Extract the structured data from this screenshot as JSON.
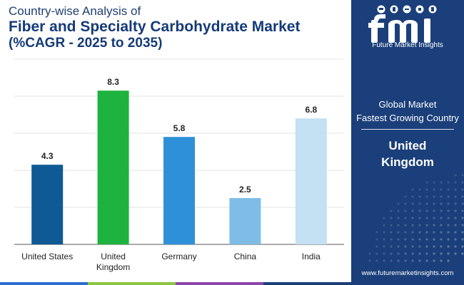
{
  "header": {
    "subtitle": "Country-wise Analysis of",
    "title": "Fiber and Specialty Carbohydrate Market",
    "cagr_label": "(%CAGR - 2025 to 2035)"
  },
  "sidebar": {
    "brand_name": "Future Market Insights",
    "global_market_label": "Global Market",
    "fastest_label": "Fastest Growing Country",
    "country_line1": "United",
    "country_line2": "Kingdom",
    "website": "www.futuremarketinsights.com"
  },
  "colors": {
    "sidebar_bg": "#1b3f7a",
    "strip": [
      "#2a6fd6",
      "#8cc63f",
      "#8e44ad",
      "#1b3f7a"
    ]
  },
  "chart_data": {
    "type": "bar",
    "title": "Fiber and Specialty Carbohydrate Market (%CAGR - 2025 to 2035)",
    "xlabel": "",
    "ylabel": "",
    "ylim": [
      0,
      10
    ],
    "grid": true,
    "categories": [
      "United States",
      "United Kingdom",
      "Germany",
      "China",
      "India"
    ],
    "category_lines": [
      [
        "United States"
      ],
      [
        "United",
        "Kingdom"
      ],
      [
        "Germany"
      ],
      [
        "China"
      ],
      [
        "India"
      ]
    ],
    "values": [
      4.3,
      8.3,
      5.8,
      2.5,
      6.8
    ],
    "value_labels": [
      "4.3",
      "8.3",
      "5.8",
      "2.5",
      "6.8"
    ],
    "colors": [
      "#0f5a94",
      "#1db33e",
      "#2e90d9",
      "#7fbde6",
      "#c3e1f2"
    ]
  }
}
